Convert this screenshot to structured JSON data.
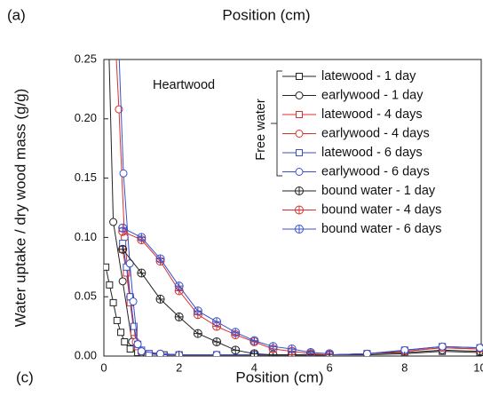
{
  "chart_data": {
    "type": "line",
    "panel_label_top": "(a)",
    "top_axis_label": "Position (cm)",
    "panel_label": "(c)",
    "xlabel": "Position (cm)",
    "ylabel": "Water uptake / dry wood mass (g/g)",
    "annotation": "Heartwood",
    "legend_group_label": "Free water",
    "xlim": [
      0,
      10
    ],
    "ylim": [
      0,
      0.25
    ],
    "xticks": [
      0,
      2,
      4,
      6,
      8,
      10
    ],
    "yticks": [
      {
        "value": 0,
        "label": "0.00"
      },
      {
        "value": 0.05,
        "label": "0.05"
      },
      {
        "value": 0.1,
        "label": "0.10"
      },
      {
        "value": 0.15,
        "label": "0.15"
      },
      {
        "value": 0.2,
        "label": "0.20"
      },
      {
        "value": 0.25,
        "label": "0.25"
      }
    ],
    "grid": false,
    "series": [
      {
        "name": "latewood - 1 day",
        "color": "#222222",
        "marker": "square",
        "group": "free",
        "x": [
          0.05,
          0.15,
          0.25,
          0.35,
          0.45,
          0.55,
          0.7,
          0.9,
          1.2,
          1.6,
          2,
          3,
          4,
          5,
          6,
          7,
          8,
          9,
          10
        ],
        "values": [
          0.075,
          0.06,
          0.045,
          0.03,
          0.02,
          0.012,
          0.006,
          0.003,
          0.002,
          0.001,
          0.001,
          0.001,
          0.001,
          0.001,
          0.001,
          0.001,
          0.002,
          0.004,
          0.003
        ]
      },
      {
        "name": "earlywood - 1 day",
        "color": "#222222",
        "marker": "circle",
        "group": "free",
        "x": [
          0.1,
          0.25,
          0.5,
          0.75,
          1,
          1.5,
          2,
          3,
          4,
          5,
          6,
          7,
          8,
          9,
          10
        ],
        "values": [
          0.3,
          0.113,
          0.063,
          0.012,
          0.003,
          0.002,
          0.001,
          0.001,
          0.001,
          0.001,
          0.001,
          0.002,
          0.003,
          0.005,
          0.004
        ]
      },
      {
        "name": "latewood - 4 days",
        "color": "#d9302c",
        "marker": "square",
        "group": "free",
        "x": [
          0.5,
          0.6,
          0.7,
          0.8,
          0.9,
          1,
          1.2,
          1.5,
          2,
          3,
          4,
          5,
          6,
          7,
          8,
          9,
          10
        ],
        "values": [
          0.09,
          0.07,
          0.045,
          0.02,
          0.008,
          0.004,
          0.002,
          0.001,
          0.001,
          0.001,
          0.001,
          0.001,
          0.001,
          0.002,
          0.004,
          0.007,
          0.006
        ]
      },
      {
        "name": "earlywood - 4 days",
        "color": "#d9302c",
        "marker": "circle",
        "group": "free",
        "x": [
          0.25,
          0.4,
          0.55,
          0.7,
          0.85,
          1,
          1.5,
          2,
          3,
          4,
          5,
          6,
          7,
          8,
          9,
          10
        ],
        "values": [
          0.3,
          0.208,
          0.1,
          0.05,
          0.012,
          0.004,
          0.002,
          0.001,
          0.001,
          0.001,
          0.001,
          0.001,
          0.002,
          0.004,
          0.007,
          0.006
        ]
      },
      {
        "name": "latewood - 6 days",
        "color": "#3a4fc8",
        "marker": "square",
        "group": "free",
        "x": [
          0.5,
          0.6,
          0.7,
          0.8,
          0.9,
          1,
          1.2,
          1.5,
          2,
          3,
          4,
          5,
          6,
          7,
          8,
          9,
          10
        ],
        "values": [
          0.095,
          0.075,
          0.05,
          0.025,
          0.01,
          0.005,
          0.002,
          0.001,
          0.001,
          0.001,
          0.001,
          0.001,
          0.001,
          0.002,
          0.005,
          0.008,
          0.007
        ]
      },
      {
        "name": "earlywood - 6 days",
        "color": "#3a4fc8",
        "marker": "circle",
        "group": "free",
        "x": [
          0.35,
          0.52,
          0.69,
          0.78,
          0.9,
          1,
          1.5,
          2,
          3,
          4,
          5,
          6,
          7,
          8,
          9,
          10
        ],
        "values": [
          0.3,
          0.154,
          0.078,
          0.046,
          0.01,
          0.004,
          0.002,
          0.001,
          0.001,
          0.001,
          0.001,
          0.001,
          0.002,
          0.005,
          0.008,
          0.007
        ]
      },
      {
        "name": "bound water - 1 day",
        "color": "#222222",
        "marker": "crossed-circle",
        "group": "bound",
        "x": [
          0.5,
          1,
          1.5,
          2,
          2.5,
          3,
          3.5,
          4,
          4.5,
          5,
          5.5,
          6
        ],
        "values": [
          0.09,
          0.07,
          0.048,
          0.033,
          0.019,
          0.012,
          0.005,
          0.002,
          0.001,
          0.001,
          0.001,
          0.001
        ]
      },
      {
        "name": "bound water - 4 days",
        "color": "#d9302c",
        "marker": "crossed-circle",
        "group": "bound",
        "x": [
          0.5,
          1,
          1.5,
          2,
          2.5,
          3,
          3.5,
          4,
          4.5,
          5,
          5.5,
          6
        ],
        "values": [
          0.105,
          0.098,
          0.08,
          0.055,
          0.035,
          0.025,
          0.018,
          0.012,
          0.006,
          0.004,
          0.002,
          0.001
        ]
      },
      {
        "name": "bound water - 6 days",
        "color": "#3a4fc8",
        "marker": "crossed-circle",
        "group": "bound",
        "x": [
          0.5,
          1,
          1.5,
          2,
          2.5,
          3,
          3.5,
          4,
          4.5,
          5,
          5.5,
          6
        ],
        "values": [
          0.108,
          0.1,
          0.082,
          0.059,
          0.038,
          0.029,
          0.02,
          0.013,
          0.008,
          0.006,
          0.003,
          0.002
        ]
      }
    ]
  }
}
